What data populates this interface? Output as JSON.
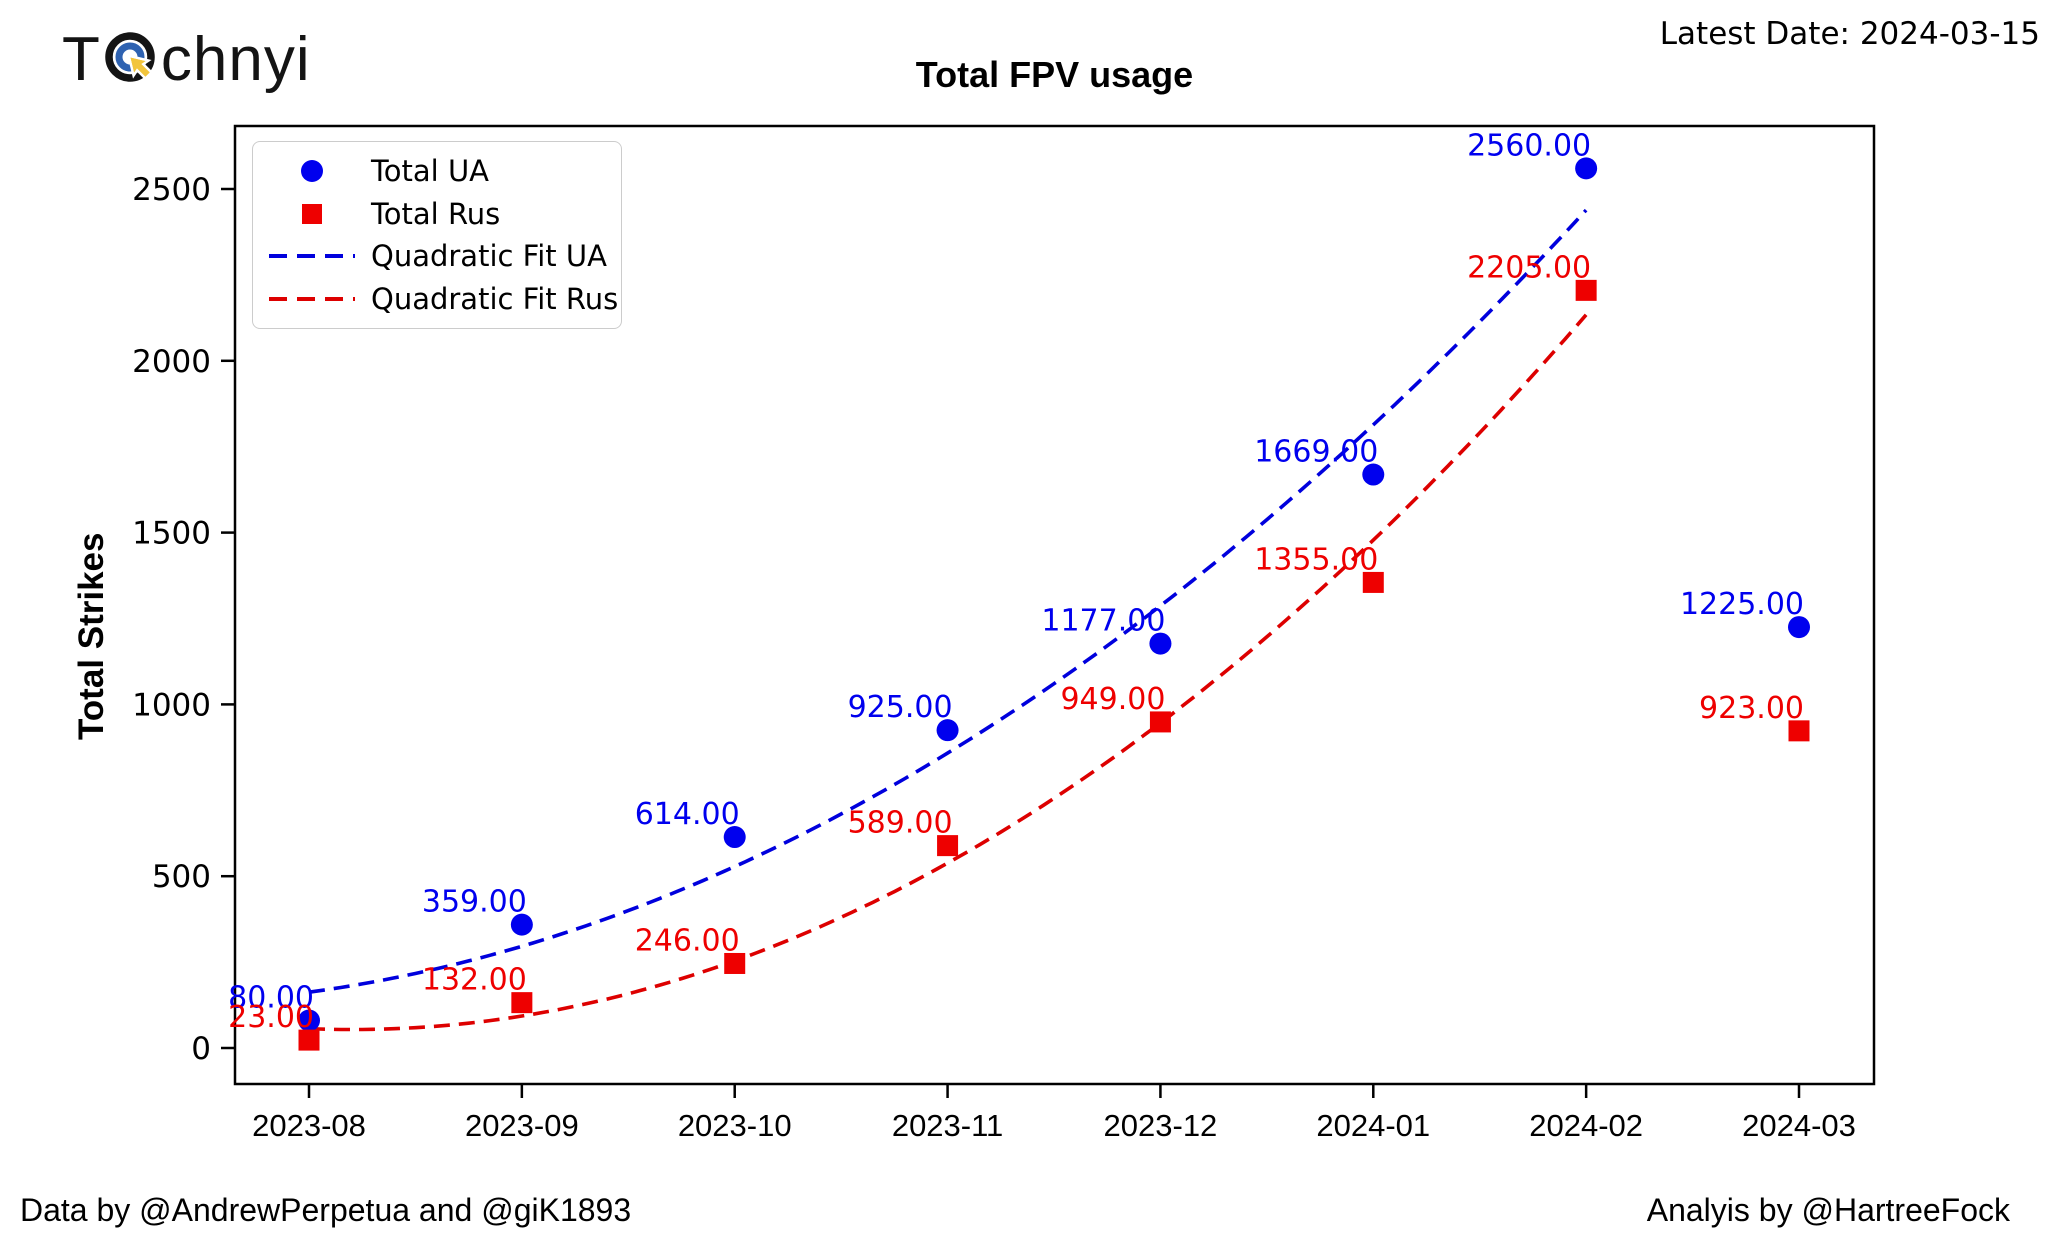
{
  "logo": {
    "prefix": "T",
    "suffix": "chnyi",
    "icon_outer_color": "#141414",
    "icon_inner_color": "#2e62b1",
    "icon_cursor_color": "#f2c53d"
  },
  "header": {
    "latest_date": "Latest Date: 2024-03-15"
  },
  "footer": {
    "left": "Data by @AndrewPerpetua and @giK1893",
    "right": "Analyis by @HartreeFock"
  },
  "chart_data": {
    "type": "scatter",
    "title": "Total FPV usage",
    "xlabel": "",
    "ylabel": "Total Strikes",
    "categories": [
      "2023-08",
      "2023-09",
      "2023-10",
      "2023-11",
      "2023-12",
      "2024-01",
      "2024-02",
      "2024-03"
    ],
    "series": [
      {
        "name": "Total UA",
        "marker": "circle",
        "color": "#0000ee",
        "values": [
          80,
          359,
          614,
          925,
          1177,
          1669,
          2560,
          1225
        ]
      },
      {
        "name": "Total Rus",
        "marker": "square",
        "color": "#ee0000",
        "values": [
          23,
          132,
          246,
          589,
          949,
          1355,
          2205,
          923
        ]
      }
    ],
    "fits": [
      {
        "name": "Quadratic Fit UA",
        "series": 0,
        "color": "#0000dd",
        "points_used": 7,
        "style": "dashed"
      },
      {
        "name": "Quadratic Fit Rus",
        "series": 1,
        "color": "#dd0000",
        "points_used": 7,
        "style": "dashed"
      }
    ],
    "yticks": [
      0,
      500,
      1000,
      1500,
      2000,
      2500
    ],
    "ylim": [
      -170,
      2720
    ],
    "point_label_decimals": 2,
    "legend_position": "upper left",
    "grid": false
  }
}
